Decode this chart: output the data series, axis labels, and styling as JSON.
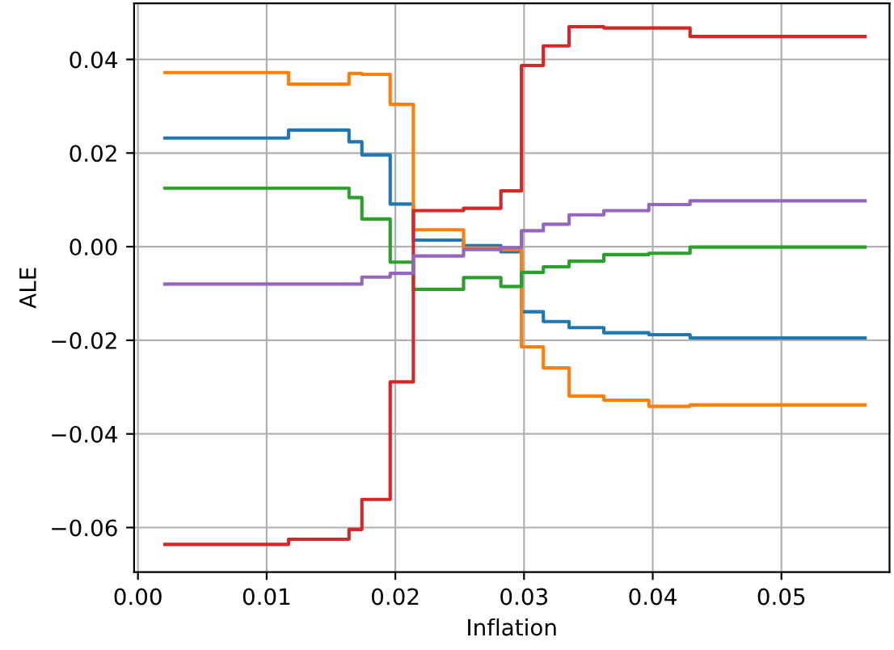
{
  "chart_data": {
    "type": "step",
    "xlabel": "Inflation",
    "ylabel": "ALE",
    "x": [
      0.0021,
      0.0117,
      0.0164,
      0.0174,
      0.0196,
      0.0214,
      0.0253,
      0.0282,
      0.0298,
      0.0315,
      0.0335,
      0.0362,
      0.0397,
      0.0429,
      0.0565
    ],
    "series": [
      {
        "color": "#1f77b4",
        "values": [
          0.0232,
          0.0249,
          0.0224,
          0.0196,
          0.0091,
          0.0014,
          0.0002,
          -0.0011,
          -0.0139,
          -0.016,
          -0.0173,
          -0.0184,
          -0.0188,
          -0.0195,
          -0.0195
        ]
      },
      {
        "color": "#ff7f0e",
        "values": [
          0.0372,
          0.0347,
          0.037,
          0.0368,
          0.0304,
          0.0036,
          -0.0003,
          -0.0006,
          -0.0214,
          -0.0259,
          -0.0319,
          -0.0328,
          -0.0341,
          -0.0338,
          -0.0338
        ]
      },
      {
        "color": "#2ca02c",
        "values": [
          0.0125,
          0.0125,
          0.0105,
          0.0059,
          -0.0033,
          -0.0091,
          -0.0066,
          -0.0085,
          -0.0055,
          -0.0043,
          -0.0031,
          -0.0017,
          -0.0014,
          -0.0001,
          -0.0001
        ]
      },
      {
        "color": "#d62728",
        "values": [
          -0.0636,
          -0.0625,
          -0.0604,
          -0.054,
          -0.0289,
          0.0077,
          0.0082,
          0.0119,
          0.0387,
          0.0429,
          0.047,
          0.0467,
          0.0467,
          0.0449,
          0.0449
        ]
      },
      {
        "color": "#9467bd",
        "values": [
          -0.008,
          -0.008,
          -0.008,
          -0.0065,
          -0.0057,
          -0.002,
          -0.0006,
          -0.0002,
          0.0034,
          0.0048,
          0.0068,
          0.0077,
          0.009,
          0.0098,
          0.0098
        ]
      }
    ],
    "xlim": [
      -0.0003,
      0.0584
    ],
    "ylim": [
      -0.0695,
      0.052
    ],
    "xticks": [
      {
        "value": 0,
        "label": "0.00"
      },
      {
        "value": 0.01,
        "label": "0.01"
      },
      {
        "value": 0.02,
        "label": "0.02"
      },
      {
        "value": 0.03,
        "label": "0.03"
      },
      {
        "value": 0.04,
        "label": "0.04"
      },
      {
        "value": 0.05,
        "label": "0.05"
      }
    ],
    "yticks": [
      {
        "value": -0.06,
        "label": "−0.06"
      },
      {
        "value": -0.04,
        "label": "−0.04"
      },
      {
        "value": -0.02,
        "label": "−0.02"
      },
      {
        "value": 0,
        "label": "0.00"
      },
      {
        "value": 0.02,
        "label": "0.02"
      },
      {
        "value": 0.04,
        "label": "0.04"
      }
    ],
    "grid": true
  }
}
